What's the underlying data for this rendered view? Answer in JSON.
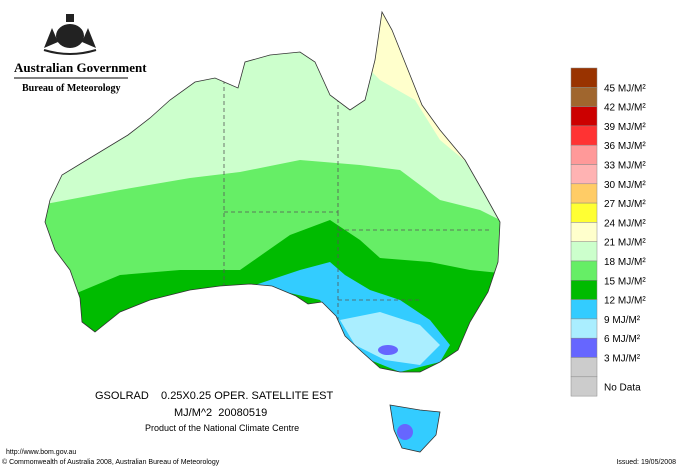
{
  "header": {
    "government": "Australian Government",
    "bureau": "Bureau of Meteorology"
  },
  "map": {
    "line1": "GSOLRAD    0.25X0.25 OPER. SATELLITE EST",
    "line2": "MJ/M^2  20080519",
    "line3": "Product of the National Climate Centre"
  },
  "legend": {
    "colors": [
      "#993300",
      "#a0662e",
      "#cc0000",
      "#ff3333",
      "#ff9999",
      "#ffb3b3",
      "#ffcc66",
      "#ffff33",
      "#ffffcc",
      "#ccffcc",
      "#66ee66",
      "#00bb00",
      "#33ccff",
      "#aaeeff",
      "#6666ff",
      "#cccccc",
      "#cccccc"
    ],
    "labels": [
      "45 MJ/M²",
      "42 MJ/M²",
      "39 MJ/M²",
      "36 MJ/M²",
      "33 MJ/M²",
      "30 MJ/M²",
      "27 MJ/M²",
      "24 MJ/M²",
      "21 MJ/M²",
      "18 MJ/M²",
      "15 MJ/M²",
      "12 MJ/M²",
      "9 MJ/M²",
      "6 MJ/M²",
      "3 MJ/M²"
    ],
    "no_data": "No Data"
  },
  "footer": {
    "url": "http://www.bom.gov.au",
    "copyright": "© Commonwealth of Australia 2008, Australian Bureau of Meteorology",
    "issued": "Issued: 19/05/2008"
  }
}
